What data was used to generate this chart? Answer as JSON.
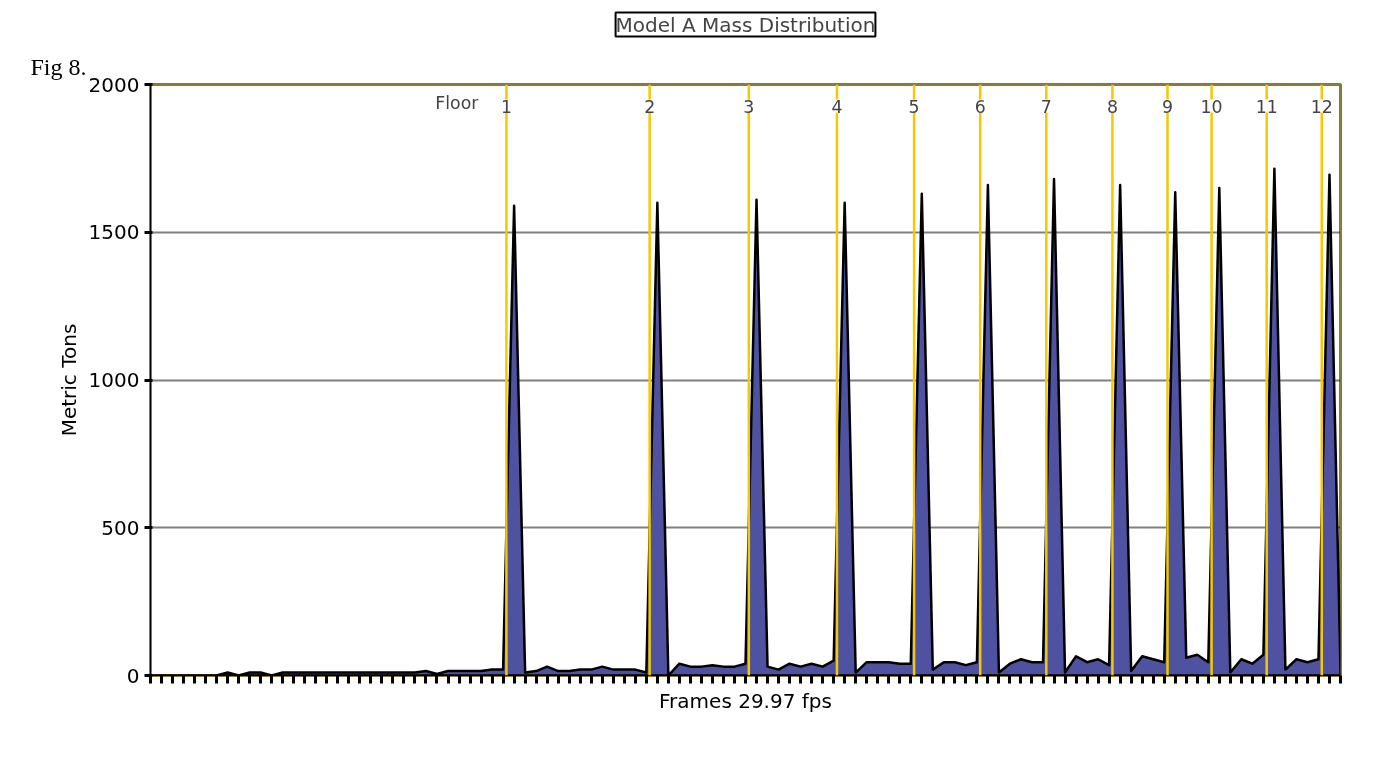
{
  "chart_data": {
    "type": "area",
    "title": "Model A Mass Distribution",
    "xlabel": "Frames 29.97 fps",
    "ylabel": "Metric Tons",
    "annotations": [
      "Fig 8.",
      "Floor",
      "1",
      "2",
      "3",
      "4",
      "5",
      "6",
      "7",
      "8",
      "9",
      "10",
      "11",
      "12"
    ],
    "categories": [
      null,
      null,
      null,
      null,
      null,
      null,
      null,
      null,
      null,
      null,
      null,
      null,
      null,
      null,
      null,
      null,
      null,
      null,
      null,
      null,
      null,
      null,
      null,
      null,
      null,
      null,
      null,
      null,
      null,
      null,
      null,
      null,
      null,
      null,
      null,
      null,
      null,
      null,
      null,
      null,
      null,
      null,
      null,
      null,
      null,
      null,
      null,
      null,
      null,
      null,
      null,
      null,
      null,
      null,
      null,
      null,
      null,
      null,
      null,
      null,
      null,
      null,
      null,
      null,
      null,
      null,
      null,
      null,
      null,
      null,
      null,
      null,
      null,
      null,
      null,
      null,
      null,
      null,
      null,
      null,
      null,
      null,
      null,
      null,
      null,
      null,
      null,
      null,
      null,
      null,
      null,
      null,
      null,
      null,
      null,
      null,
      null,
      null,
      null,
      null,
      null,
      null,
      null,
      null,
      null,
      null,
      null,
      null,
      null
    ],
    "series": [
      {
        "color": "#4f52a0",
        "values": [
          0,
          0,
          0,
          0,
          0,
          0,
          0,
          10,
          0,
          10,
          10,
          0,
          10,
          10,
          10,
          10,
          10,
          10,
          10,
          10,
          10,
          10,
          10,
          10,
          10,
          15,
          5,
          15,
          15,
          15,
          15,
          20,
          20,
          1590,
          10,
          15,
          30,
          15,
          15,
          20,
          20,
          30,
          20,
          20,
          20,
          10,
          1600,
          0,
          40,
          30,
          30,
          35,
          30,
          30,
          40,
          1610,
          30,
          20,
          40,
          30,
          40,
          30,
          50,
          1600,
          10,
          45,
          45,
          45,
          40,
          40,
          1630,
          20,
          45,
          45,
          35,
          45,
          1660,
          10,
          40,
          55,
          45,
          45,
          1680,
          10,
          65,
          45,
          55,
          35,
          1660,
          15,
          65,
          55,
          45,
          1635,
          60,
          70,
          45,
          1650,
          10,
          55,
          40,
          70,
          1715,
          20,
          55,
          45,
          55,
          1695,
          20
        ]
      }
    ],
    "ylim": [
      0,
      2000
    ],
    "yticks": [
      0,
      500,
      1000,
      1500,
      2000
    ],
    "grid": "y"
  }
}
